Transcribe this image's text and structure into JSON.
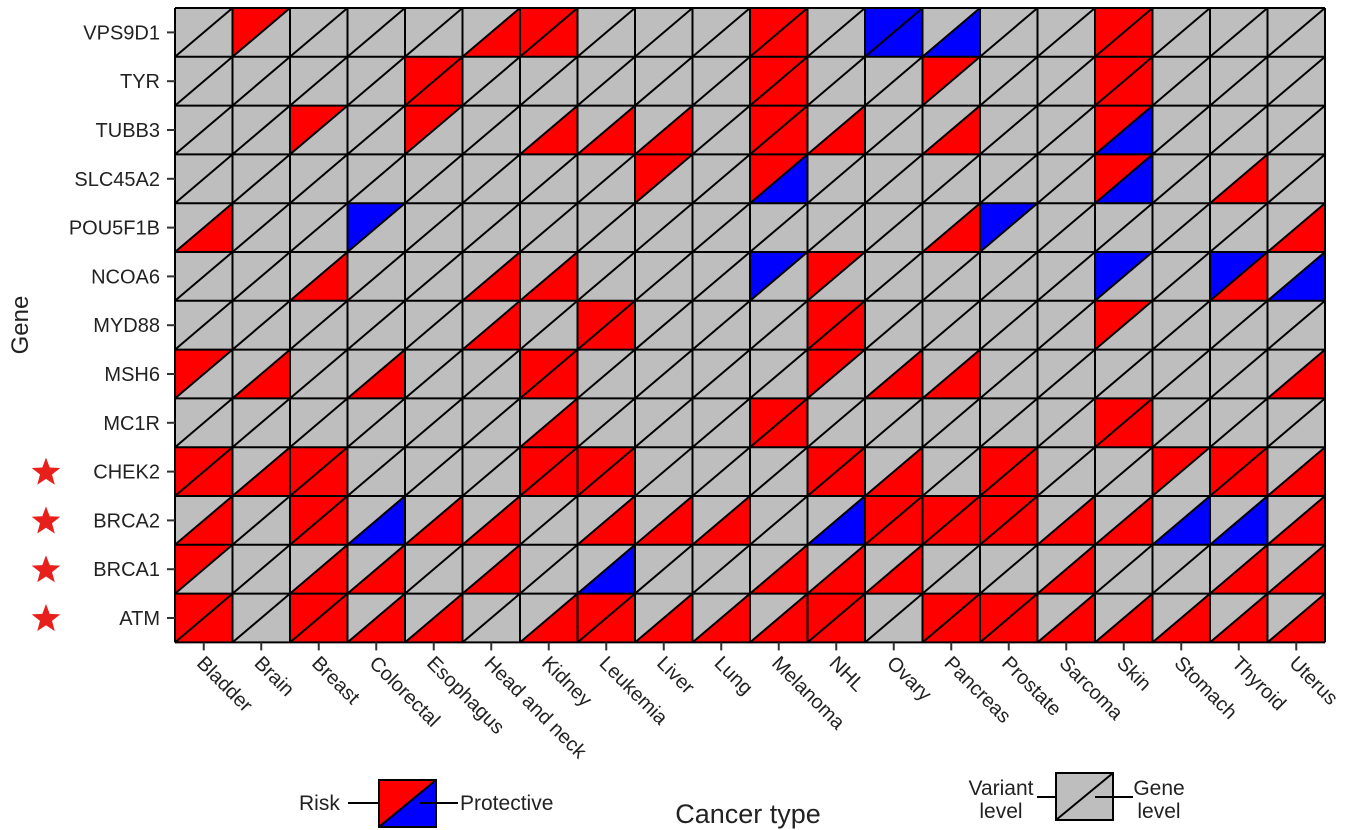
{
  "chart_data": {
    "type": "heatmap",
    "xlabel": "Cancer type",
    "ylabel": "Gene",
    "cancer_types": [
      "Bladder",
      "Brain",
      "Breast",
      "Colorectal",
      "Esophagus",
      "Head and neck",
      "Kidney",
      "Leukemia",
      "Liver",
      "Lung",
      "Melanoma",
      "NHL",
      "Ovary",
      "Pancreas",
      "Prostate",
      "Sarcoma",
      "Skin",
      "Stomach",
      "Thyroid",
      "Uterus"
    ],
    "genes": [
      "VPS9D1",
      "TYR",
      "TUBB3",
      "SLC45A2",
      "POU5F1B",
      "NCOA6",
      "MYD88",
      "MSH6",
      "MC1R",
      "CHEK2",
      "BRCA2",
      "BRCA1",
      "ATM"
    ],
    "starred_genes": [
      "CHEK2",
      "BRCA2",
      "BRCA1",
      "ATM"
    ],
    "cell_encoding": {
      "variant_level": "upper-left triangle",
      "gene_level": "lower-right triangle",
      "codes": {
        "N": "none",
        "R": "Risk",
        "P": "Protective"
      }
    },
    "cells": [
      [
        "NN",
        "RN",
        "NN",
        "NN",
        "NN",
        "NR",
        "RR",
        "NN",
        "NN",
        "NN",
        "RR",
        "NN",
        "PP",
        "NP",
        "NN",
        "NN",
        "RR",
        "NN",
        "NN",
        "NN"
      ],
      [
        "NN",
        "NN",
        "NN",
        "NN",
        "RR",
        "NN",
        "NN",
        "NN",
        "NN",
        "NN",
        "RR",
        "NN",
        "NN",
        "RN",
        "NN",
        "NN",
        "RR",
        "NN",
        "NN",
        "NN"
      ],
      [
        "NN",
        "NN",
        "RN",
        "NN",
        "RN",
        "NN",
        "NR",
        "NR",
        "NR",
        "NN",
        "RR",
        "NR",
        "NN",
        "NR",
        "NN",
        "NN",
        "RP",
        "NN",
        "NN",
        "NN"
      ],
      [
        "NN",
        "NN",
        "NN",
        "NN",
        "NN",
        "NN",
        "NN",
        "NN",
        "RN",
        "NN",
        "RP",
        "NN",
        "NN",
        "NN",
        "NN",
        "NN",
        "RP",
        "NN",
        "NR",
        "NN"
      ],
      [
        "NR",
        "NN",
        "NN",
        "PN",
        "NN",
        "NN",
        "NN",
        "NN",
        "NN",
        "NN",
        "NN",
        "NN",
        "NN",
        "NR",
        "PN",
        "NN",
        "NN",
        "NN",
        "NN",
        "NR"
      ],
      [
        "NN",
        "NN",
        "NR",
        "NN",
        "NN",
        "NR",
        "NR",
        "NN",
        "NN",
        "NN",
        "PN",
        "RN",
        "NN",
        "NN",
        "NN",
        "NN",
        "PN",
        "NN",
        "PR",
        "NP"
      ],
      [
        "NN",
        "NN",
        "NN",
        "NN",
        "NN",
        "NR",
        "NN",
        "RR",
        "NN",
        "NN",
        "NN",
        "RR",
        "NN",
        "NN",
        "NN",
        "NN",
        "RN",
        "NN",
        "NN",
        "NN"
      ],
      [
        "RN",
        "NR",
        "NN",
        "NR",
        "NN",
        "NN",
        "RR",
        "NN",
        "NN",
        "NN",
        "NN",
        "RN",
        "NR",
        "NR",
        "NN",
        "NN",
        "NN",
        "NN",
        "NN",
        "NR"
      ],
      [
        "NN",
        "NN",
        "NN",
        "NN",
        "NN",
        "NN",
        "NR",
        "NN",
        "NN",
        "NN",
        "RR",
        "NN",
        "NN",
        "NN",
        "NN",
        "NN",
        "RR",
        "NN",
        "NN",
        "NN"
      ],
      [
        "RR",
        "NR",
        "RR",
        "NN",
        "NN",
        "NN",
        "RR",
        "RR",
        "NN",
        "NN",
        "NN",
        "RR",
        "NR",
        "NN",
        "RR",
        "NN",
        "NN",
        "RN",
        "RR",
        "NR"
      ],
      [
        "NR",
        "NN",
        "RR",
        "NP",
        "NR",
        "NR",
        "NN",
        "NR",
        "NR",
        "NR",
        "NN",
        "NP",
        "RR",
        "RR",
        "RR",
        "NR",
        "NR",
        "NP",
        "NP",
        "NR"
      ],
      [
        "RN",
        "NN",
        "NR",
        "NR",
        "NN",
        "NR",
        "NN",
        "NP",
        "NN",
        "NN",
        "NR",
        "NR",
        "NR",
        "NN",
        "NN",
        "NR",
        "NN",
        "NN",
        "NR",
        "NR"
      ],
      [
        "RR",
        "NN",
        "RR",
        "NR",
        "NR",
        "NN",
        "NR",
        "RR",
        "NR",
        "NR",
        "NR",
        "RR",
        "NN",
        "RR",
        "RR",
        "NR",
        "NR",
        "NR",
        "NR",
        "NR"
      ]
    ],
    "legend_left": {
      "risk_label": "Risk",
      "protective_label": "Protective"
    },
    "legend_right": {
      "variant_label_line1": "Variant",
      "variant_label_line2": "level",
      "gene_label_line1": "Gene",
      "gene_label_line2": "level"
    },
    "colors": {
      "none": "#bebebe",
      "risk": "#ff0000",
      "protective": "#0000ff",
      "star": "#e8201b",
      "grid": "#000000"
    }
  }
}
